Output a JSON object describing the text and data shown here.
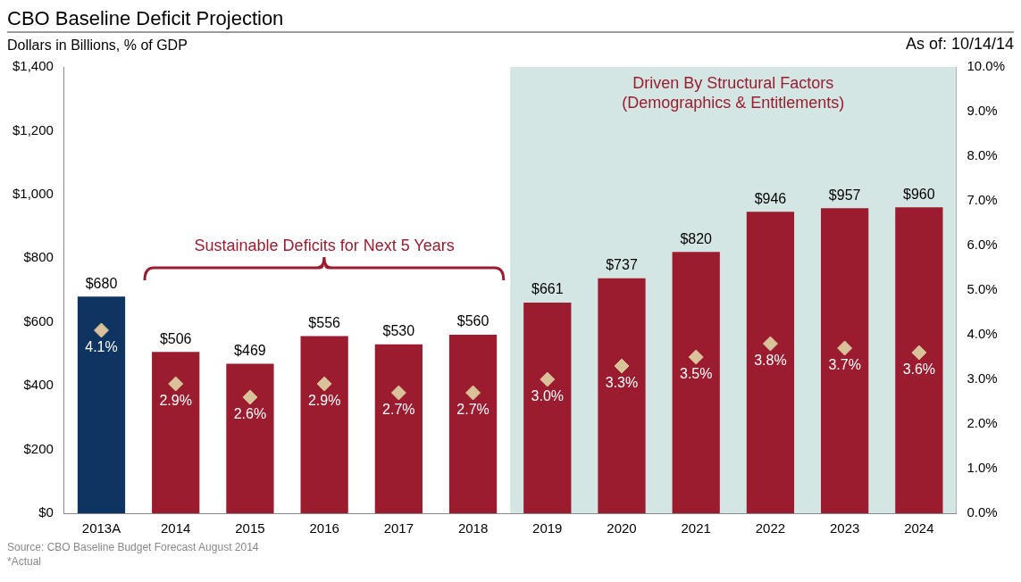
{
  "chart_data": {
    "type": "bar",
    "title": "CBO Baseline Deficit Projection",
    "subtitle": "Dollars in Billions, % of GDP",
    "categories": [
      "2013A",
      "2014",
      "2015",
      "2016",
      "2017",
      "2018",
      "2019",
      "2020",
      "2021",
      "2022",
      "2023",
      "2024"
    ],
    "series": [
      {
        "colors": [
          "#0e3461",
          "#9b1c2e",
          "#9b1c2e",
          "#9b1c2e",
          "#9b1c2e",
          "#9b1c2e",
          "#9b1c2e",
          "#9b1c2e",
          "#9b1c2e",
          "#9b1c2e",
          "#9b1c2e",
          "#9b1c2e"
        ],
        "values": [
          680,
          506,
          469,
          556,
          530,
          560,
          661,
          737,
          820,
          946,
          957,
          960
        ],
        "value_labels": [
          "$680",
          "$506",
          "$469",
          "$556",
          "$530",
          "$560",
          "$661",
          "$737",
          "$820",
          "$946",
          "$957",
          "$960"
        ]
      },
      {
        "type": "scatter",
        "axis": "y2",
        "color": "#d9c29a",
        "marker": "diamond",
        "values": [
          4.1,
          2.9,
          2.6,
          2.9,
          2.7,
          2.7,
          3.0,
          3.3,
          3.5,
          3.8,
          3.7,
          3.6
        ],
        "value_labels": [
          "4.1%",
          "2.9%",
          "2.6%",
          "2.9%",
          "2.7%",
          "2.7%",
          "3.0%",
          "3.3%",
          "3.5%",
          "3.8%",
          "3.7%",
          "3.6%"
        ]
      }
    ],
    "ylim": [
      0,
      1400
    ],
    "yticks": [
      {
        "value": 0,
        "label": "$0"
      },
      {
        "value": 200,
        "label": "$200"
      },
      {
        "value": 400,
        "label": "$400"
      },
      {
        "value": 600,
        "label": "$600"
      },
      {
        "value": 800,
        "label": "$800"
      },
      {
        "value": 1000,
        "label": "$1,000"
      },
      {
        "value": 1200,
        "label": "$1,200"
      },
      {
        "value": 1400,
        "label": "$1,400"
      }
    ],
    "y2lim": [
      0,
      10
    ],
    "y2ticks": [
      {
        "value": 0,
        "label": "0.0%"
      },
      {
        "value": 1,
        "label": "1.0%"
      },
      {
        "value": 2,
        "label": "2.0%"
      },
      {
        "value": 3,
        "label": "3.0%"
      },
      {
        "value": 4,
        "label": "4.0%"
      },
      {
        "value": 5,
        "label": "5.0%"
      },
      {
        "value": 6,
        "label": "6.0%"
      },
      {
        "value": 7,
        "label": "7.0%"
      },
      {
        "value": 8,
        "label": "8.0%"
      },
      {
        "value": 9,
        "label": "9.0%"
      },
      {
        "value": 10,
        "label": "10.0%"
      }
    ],
    "bands": [
      {
        "axis": "x",
        "from": "2019",
        "to": "2024",
        "label": "Driven By Structural Factors\n(Demographics & Entitlements)",
        "color": "#d3e6e3"
      }
    ],
    "annotations": [
      "As of: 10/14/14",
      "Sustainable Deficits for Next 5 Years",
      "Source: CBO Baseline Budget Forecast August 2014",
      "*Actual"
    ],
    "grid": false,
    "legend": false
  }
}
